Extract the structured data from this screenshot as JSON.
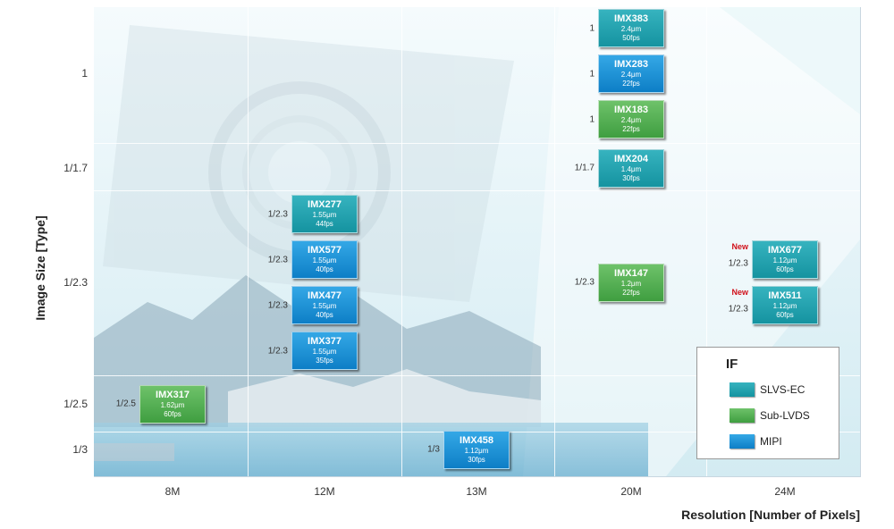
{
  "chart_data": {
    "type": "scatter",
    "xlabel": "Resolution  [Number of Pixels]",
    "ylabel": "Image Size [Type]",
    "x_categories": [
      "8M",
      "12M",
      "13M",
      "20M",
      "24M"
    ],
    "y_categories": [
      "1",
      "1/1.7",
      "1/2.3",
      "1/2.5",
      "1/3"
    ],
    "legend": {
      "title": "IF",
      "position": "bottom-right",
      "items": [
        {
          "name": "SLVS-EC",
          "color": "#1fa2ae"
        },
        {
          "name": "Sub-LVDS",
          "color": "#52b050"
        },
        {
          "name": "MIPI",
          "color": "#1b94d8"
        }
      ]
    },
    "sensors": [
      {
        "name": "IMX383",
        "resolution": "20M",
        "size": "1",
        "pixel": "2.4μm",
        "fps": "50fps",
        "interface": "SLVS-EC",
        "new": false
      },
      {
        "name": "IMX283",
        "resolution": "20M",
        "size": "1",
        "pixel": "2.4μm",
        "fps": "22fps",
        "interface": "MIPI",
        "new": false
      },
      {
        "name": "IMX183",
        "resolution": "20M",
        "size": "1",
        "pixel": "2.4μm",
        "fps": "22fps",
        "interface": "Sub-LVDS",
        "new": false
      },
      {
        "name": "IMX204",
        "resolution": "20M",
        "size": "1/1.7",
        "pixel": "1.4μm",
        "fps": "30fps",
        "interface": "SLVS-EC",
        "new": false
      },
      {
        "name": "IMX277",
        "resolution": "12M",
        "size": "1/2.3",
        "pixel": "1.55μm",
        "fps": "44fps",
        "interface": "SLVS-EC",
        "new": false
      },
      {
        "name": "IMX577",
        "resolution": "12M",
        "size": "1/2.3",
        "pixel": "1.55μm",
        "fps": "40fps",
        "interface": "MIPI",
        "new": false
      },
      {
        "name": "IMX477",
        "resolution": "12M",
        "size": "1/2.3",
        "pixel": "1.55μm",
        "fps": "40fps",
        "interface": "MIPI",
        "new": false
      },
      {
        "name": "IMX377",
        "resolution": "12M",
        "size": "1/2.3",
        "pixel": "1.55μm",
        "fps": "35fps",
        "interface": "MIPI",
        "new": false
      },
      {
        "name": "IMX147",
        "resolution": "20M",
        "size": "1/2.3",
        "pixel": "1.2μm",
        "fps": "22fps",
        "interface": "Sub-LVDS",
        "new": false
      },
      {
        "name": "IMX677",
        "resolution": "24M",
        "size": "1/2.3",
        "pixel": "1.12μm",
        "fps": "60fps",
        "interface": "SLVS-EC",
        "new": true
      },
      {
        "name": "IMX511",
        "resolution": "24M",
        "size": "1/2.3",
        "pixel": "1.12μm",
        "fps": "60fps",
        "interface": "SLVS-EC",
        "new": true
      },
      {
        "name": "IMX317",
        "resolution": "8M",
        "size": "1/2.5",
        "pixel": "1.62μm",
        "fps": "60fps",
        "interface": "Sub-LVDS",
        "new": false
      },
      {
        "name": "IMX458",
        "resolution": "13M",
        "size": "1/3",
        "pixel": "1.12μm",
        "fps": "30fps",
        "interface": "MIPI",
        "new": false
      }
    ],
    "new_label": "New"
  }
}
